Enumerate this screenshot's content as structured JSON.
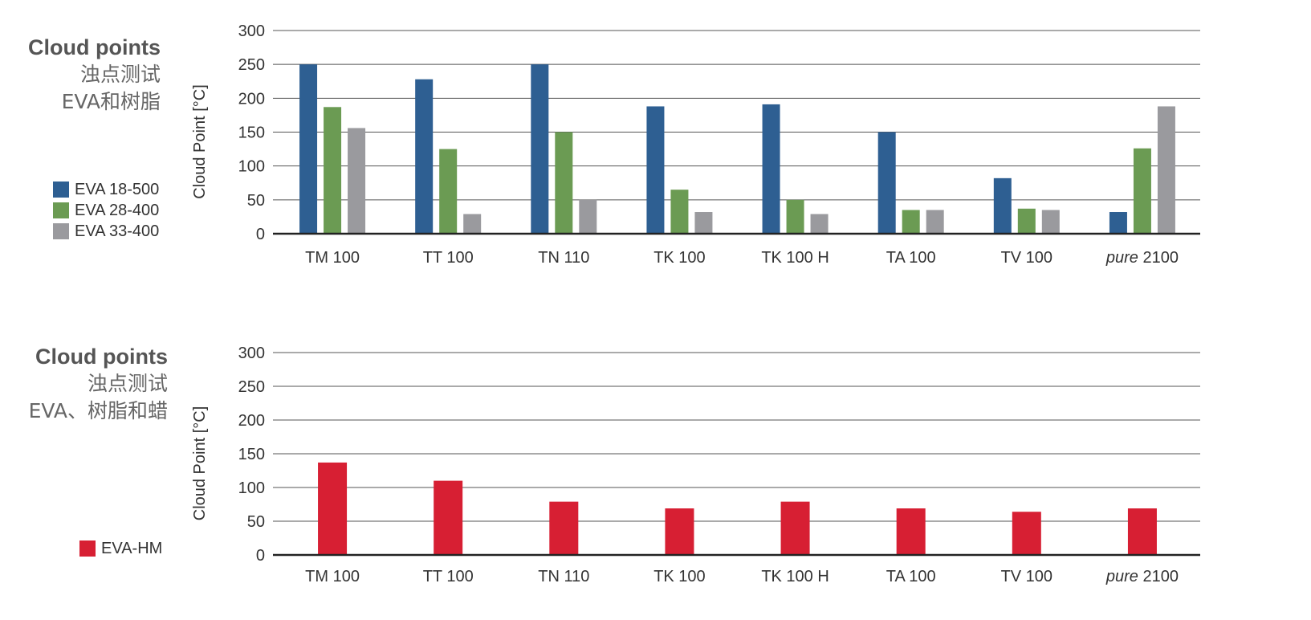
{
  "charts": [
    {
      "title_en": "Cloud points",
      "title_cn_1": "浊点测试",
      "title_cn_2": "EVA和树脂",
      "legend": [
        {
          "label": "EVA 18-500",
          "color": "#2e5f92"
        },
        {
          "label": "EVA 28-400",
          "color": "#6b9b53"
        },
        {
          "label": "EVA 33-400",
          "color": "#9a9a9e"
        }
      ]
    },
    {
      "title_en": "Cloud points",
      "title_cn_1": "浊点测试",
      "title_cn_2": "EVA、树脂和蜡",
      "legend": [
        {
          "label": "EVA-HM",
          "color": "#d71f33"
        }
      ]
    }
  ],
  "chart_data": [
    {
      "type": "bar",
      "ylabel": "Cloud Point [°C]",
      "ylim": [
        0,
        300
      ],
      "yticks": [
        0,
        50,
        100,
        150,
        200,
        250,
        300
      ],
      "grid": true,
      "legend_position": "left",
      "categories": [
        "TM 100",
        "TT 100",
        "TN 110",
        "TK 100",
        "TK 100 H",
        "TA 100",
        "TV 100",
        "pure 2100"
      ],
      "series": [
        {
          "name": "EVA 18-500",
          "color": "#2e5f92",
          "values": [
            250,
            228,
            250,
            188,
            191,
            150,
            82,
            32
          ]
        },
        {
          "name": "EVA 28-400",
          "color": "#6b9b53",
          "values": [
            187,
            125,
            150,
            65,
            50,
            35,
            37,
            126
          ]
        },
        {
          "name": "EVA 33-400",
          "color": "#9a9a9e",
          "values": [
            156,
            29,
            50,
            32,
            29,
            35,
            35,
            188
          ]
        }
      ]
    },
    {
      "type": "bar",
      "ylabel": "Cloud Point [°C]",
      "ylim": [
        0,
        300
      ],
      "yticks": [
        0,
        50,
        100,
        150,
        200,
        250,
        300
      ],
      "grid": true,
      "legend_position": "left",
      "categories": [
        "TM 100",
        "TT 100",
        "TN 110",
        "TK 100",
        "TK 100 H",
        "TA 100",
        "TV 100",
        "pure 2100"
      ],
      "series": [
        {
          "name": "EVA-HM",
          "color": "#d71f33",
          "values": [
            137,
            110,
            79,
            69,
            79,
            69,
            64,
            69
          ]
        }
      ]
    }
  ]
}
